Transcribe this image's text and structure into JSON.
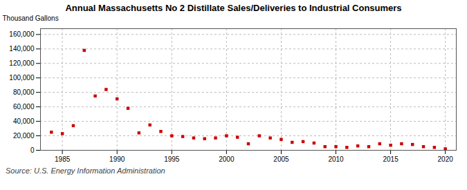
{
  "chart_data": {
    "type": "scatter",
    "title": "Annual Massachusetts No 2 Distillate Sales/Deliveries to Industrial Consumers",
    "ylabel": "Thousand Gallons",
    "source": "Source: U.S. Energy Information Administration",
    "x": [
      1984,
      1985,
      1986,
      1987,
      1988,
      1989,
      1990,
      1991,
      1992,
      1993,
      1994,
      1995,
      1996,
      1997,
      1998,
      1999,
      2000,
      2001,
      2002,
      2003,
      2004,
      2005,
      2006,
      2007,
      2008,
      2009,
      2010,
      2011,
      2012,
      2013,
      2014,
      2015,
      2016,
      2017,
      2018,
      2019,
      2020
    ],
    "values": [
      25000,
      23000,
      34000,
      138000,
      75000,
      84000,
      71000,
      58000,
      24000,
      35000,
      26000,
      20000,
      19000,
      17000,
      16000,
      17000,
      20000,
      18000,
      9000,
      20000,
      17000,
      15000,
      11000,
      12000,
      10000,
      5000,
      5000,
      4000,
      6000,
      5000,
      9000,
      7000,
      9000,
      8000,
      5000,
      4000,
      2000
    ],
    "color": "#cc0000",
    "marker": "square",
    "xlim": [
      1983,
      2021
    ],
    "ylim": [
      0,
      168000
    ],
    "xticks": [
      1985,
      1990,
      1995,
      2000,
      2005,
      2010,
      2015,
      2020
    ],
    "yticks": [
      0,
      {
        "value": 20000,
        "label": "20,000"
      },
      {
        "value": 40000,
        "label": "40,000"
      },
      {
        "value": 60000,
        "label": "60,000"
      },
      {
        "value": 80000,
        "label": "80,000"
      },
      {
        "value": 100000,
        "label": "100,000"
      },
      {
        "value": 120000,
        "label": "120,000"
      },
      {
        "value": 140000,
        "label": "140,000"
      },
      {
        "value": 160000,
        "label": "160,000"
      }
    ],
    "grid": true
  }
}
